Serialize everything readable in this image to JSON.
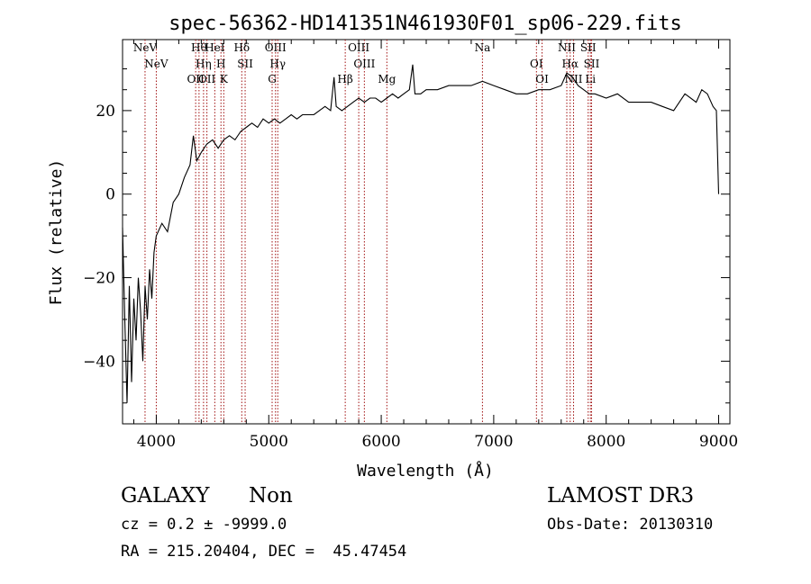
{
  "chart_data": {
    "type": "line",
    "title": "spec-56362-HD141351N461930F01_sp06-229.fits",
    "xlabel": "Wavelength (Å)",
    "ylabel": "Flux (relative)",
    "xlim": [
      3700,
      9100
    ],
    "ylim": [
      -55,
      37
    ],
    "xticks": [
      4000,
      5000,
      6000,
      7000,
      8000,
      9000
    ],
    "yticks": [
      -40,
      -20,
      0,
      20
    ],
    "grid": false,
    "legend": "none",
    "series": [
      {
        "color": "#000000",
        "x": [
          3700,
          3720,
          3740,
          3760,
          3780,
          3800,
          3820,
          3840,
          3860,
          3880,
          3900,
          3920,
          3940,
          3960,
          3980,
          4000,
          4050,
          4100,
          4150,
          4200,
          4250,
          4300,
          4330,
          4360,
          4400,
          4450,
          4500,
          4550,
          4600,
          4650,
          4700,
          4750,
          4800,
          4850,
          4900,
          4950,
          5000,
          5050,
          5100,
          5150,
          5200,
          5250,
          5300,
          5350,
          5400,
          5450,
          5500,
          5550,
          5580,
          5600,
          5650,
          5700,
          5750,
          5800,
          5850,
          5900,
          5950,
          6000,
          6050,
          6100,
          6150,
          6200,
          6250,
          6280,
          6300,
          6350,
          6400,
          6500,
          6600,
          6700,
          6800,
          6900,
          7000,
          7100,
          7200,
          7300,
          7400,
          7500,
          7600,
          7650,
          7700,
          7750,
          7800,
          7850,
          7900,
          8000,
          8100,
          8200,
          8300,
          8400,
          8500,
          8600,
          8700,
          8800,
          8850,
          8900,
          8950,
          8980,
          9000
        ],
        "y": [
          -8,
          -30,
          -50,
          -22,
          -45,
          -25,
          -35,
          -20,
          -28,
          -40,
          -22,
          -30,
          -18,
          -25,
          -14,
          -10,
          -7,
          -9,
          -2,
          0,
          4,
          7,
          14,
          8,
          10,
          12,
          13,
          11,
          13,
          14,
          13,
          15,
          16,
          17,
          16,
          18,
          17,
          18,
          17,
          18,
          19,
          18,
          19,
          19,
          19,
          20,
          21,
          20,
          28,
          21,
          20,
          21,
          22,
          23,
          22,
          23,
          23,
          22,
          23,
          24,
          23,
          24,
          25,
          31,
          24,
          24,
          25,
          25,
          26,
          26,
          26,
          27,
          26,
          25,
          24,
          24,
          25,
          25,
          26,
          29,
          28,
          26,
          25,
          24,
          24,
          23,
          24,
          22,
          22,
          22,
          21,
          20,
          24,
          22,
          25,
          24,
          21,
          20,
          0
        ]
      }
    ],
    "lines": [
      {
        "label": "NeV",
        "wavelength": 3900
      },
      {
        "label": "NeV",
        "wavelength": 4000
      },
      {
        "label": "OII",
        "wavelength": 4350
      },
      {
        "label": "Hθ",
        "wavelength": 4380
      },
      {
        "label": "Hη",
        "wavelength": 4420
      },
      {
        "label": "OII",
        "wavelength": 4450
      },
      {
        "label": "HeI",
        "wavelength": 4520
      },
      {
        "label": "H",
        "wavelength": 4575
      },
      {
        "label": "K",
        "wavelength": 4600
      },
      {
        "label": "Hδ",
        "wavelength": 4760
      },
      {
        "label": "SII",
        "wavelength": 4790
      },
      {
        "label": "G",
        "wavelength": 5030
      },
      {
        "label": "OIII",
        "wavelength": 5060
      },
      {
        "label": "Hγ",
        "wavelength": 5080
      },
      {
        "label": "Hβ",
        "wavelength": 5680
      },
      {
        "label": "OIII",
        "wavelength": 5800
      },
      {
        "label": "OIII",
        "wavelength": 5850
      },
      {
        "label": "Mg",
        "wavelength": 6050
      },
      {
        "label": "Na",
        "wavelength": 6900
      },
      {
        "label": "OI",
        "wavelength": 7380
      },
      {
        "label": "OI",
        "wavelength": 7430
      },
      {
        "label": "NII",
        "wavelength": 7650
      },
      {
        "label": "Hα",
        "wavelength": 7680
      },
      {
        "label": "NII",
        "wavelength": 7710
      },
      {
        "label": "SII",
        "wavelength": 7840
      },
      {
        "label": "SII",
        "wavelength": 7870
      },
      {
        "label": "Li",
        "wavelength": 7860
      }
    ]
  },
  "info": {
    "object_class": "GALAXY",
    "subclass": "Non",
    "survey": "LAMOST DR3",
    "cz": "cz = 0.2 ± -9999.0",
    "obs_date": "Obs-Date: 20130310",
    "coords": "RA = 215.20404, DEC =  45.47454"
  }
}
